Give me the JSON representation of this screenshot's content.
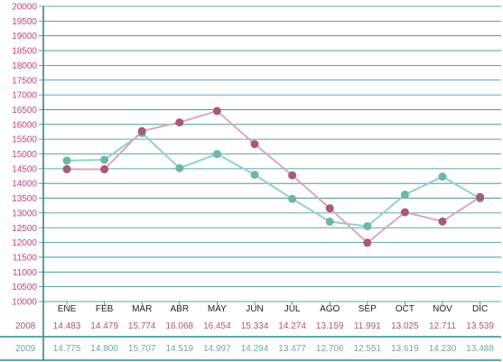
{
  "colors": {
    "axis": "#2e8a8a",
    "grid": "#2e8a8a",
    "y_tick_text": "#c2417d",
    "series_2008_line": "#d7a8c6",
    "series_2008_marker": "#a8597a",
    "series_2009_line": "#8fd1cf",
    "series_2009_marker": "#6fb5a5",
    "text_2008": "#a8597a",
    "text_2009": "#6fa9a5"
  },
  "chart_data": {
    "type": "line",
    "title": "",
    "xlabel": "",
    "ylabel": "",
    "categories": [
      "ENE",
      "FEB",
      "MAR",
      "ABR",
      "MAY",
      "JUN",
      "JUL",
      "AGO",
      "SEP",
      "OCT",
      "NOV",
      "DIC"
    ],
    "ylim": [
      10000,
      20000
    ],
    "yticks": [
      "10000",
      "10500",
      "11000",
      "11500",
      "12000",
      "12500",
      "13000",
      "13500",
      "14000",
      "14500",
      "15000",
      "15500",
      "16000",
      "16500",
      "17000",
      "17500",
      "18000",
      "18500",
      "19000",
      "19500",
      "20000"
    ],
    "grid": true,
    "series": [
      {
        "name": "2008",
        "values": [
          14483,
          14479,
          15774,
          16068,
          16454,
          15334,
          14274,
          13159,
          11991,
          13025,
          12711,
          13539
        ],
        "labels": [
          "14.483",
          "14.479",
          "15.774",
          "16.068",
          "16.454",
          "15.334",
          "14.274",
          "13.159",
          "11.991",
          "13.025",
          "12.711",
          "13.539"
        ]
      },
      {
        "name": "2009",
        "values": [
          14775,
          14800,
          15707,
          14519,
          14997,
          14294,
          13477,
          12706,
          12551,
          13619,
          14230,
          13488
        ],
        "labels": [
          "14.775",
          "14.800",
          "15.707",
          "14.519",
          "14.997",
          "14.294",
          "13.477",
          "12.706",
          "12.551",
          "13.619",
          "14.230",
          "13.488"
        ]
      }
    ]
  }
}
